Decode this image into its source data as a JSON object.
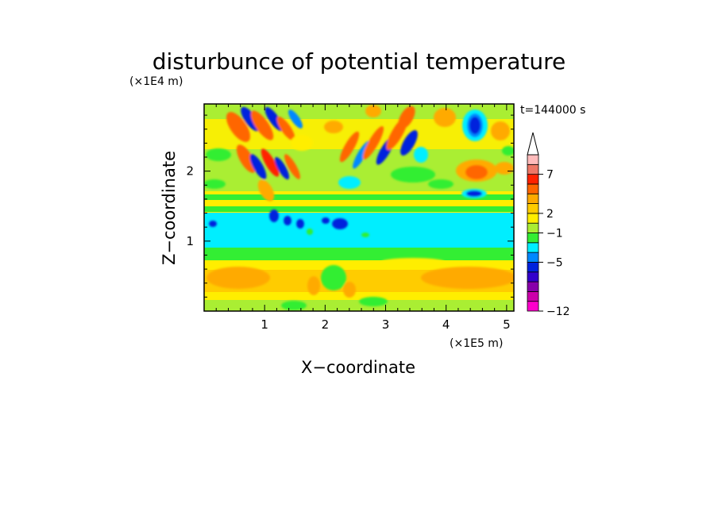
{
  "chart_data": {
    "type": "heatmap",
    "title": "disturbunce of potential temperature",
    "xlabel": "X−coordinate",
    "ylabel": "Z−coordinate",
    "x_unit": "(×1E5 m)",
    "y_unit": "(×1E4 m)",
    "time_label": "t=144000 s",
    "xlim": [
      0,
      5.12
    ],
    "ylim": [
      0,
      2.96
    ],
    "x_ticks": [
      "1",
      "2",
      "3",
      "4",
      "5"
    ],
    "y_ticks": [
      "1",
      "2"
    ],
    "x_tick_values": [
      1,
      2,
      3,
      4,
      5
    ],
    "y_tick_values": [
      1,
      2
    ],
    "colorbar": {
      "levels": [
        -12,
        -5,
        -1,
        2,
        7
      ],
      "labels": [
        "−12",
        "−5",
        "−1",
        "2",
        "7"
      ],
      "colors": [
        "#ff00cc",
        "#cc00aa",
        "#8800aa",
        "#3300cc",
        "#0022dd",
        "#0088ff",
        "#00eeff",
        "#33ee33",
        "#aaee33",
        "#ffee00",
        "#ffcc00",
        "#ffaa00",
        "#ff6600",
        "#ff2200",
        "#ee7766",
        "#ffbbbb"
      ],
      "extend": "max"
    },
    "bands": [
      {
        "z": [
          0.0,
          0.08
        ],
        "level": "yellow"
      },
      {
        "z": [
          0.08,
          0.4
        ],
        "level": "yellow-orange"
      },
      {
        "z": [
          0.4,
          0.65
        ],
        "level": "yellow"
      },
      {
        "z": [
          0.65,
          0.85
        ],
        "level": "green"
      },
      {
        "z": [
          0.85,
          1.4
        ],
        "level": "cyan"
      },
      {
        "z": [
          1.4,
          1.6
        ],
        "level": "green"
      },
      {
        "z": [
          1.6,
          2.96
        ],
        "level": "yellow-green"
      }
    ],
    "features": [
      {
        "x": 0.75,
        "z": 2.75,
        "level": "blue",
        "note": "negative anomaly"
      },
      {
        "x": 1.1,
        "z": 2.55,
        "level": "blue"
      },
      {
        "x": 4.5,
        "z": 2.7,
        "level": "blue"
      },
      {
        "x": 4.5,
        "z": 2.05,
        "level": "orange"
      },
      {
        "x": 4.4,
        "z": 1.7,
        "level": "blue"
      },
      {
        "x": 3.2,
        "z": 2.7,
        "level": "orange"
      },
      {
        "x": 0.65,
        "z": 0.45,
        "level": "orange"
      },
      {
        "x": 4.6,
        "z": 0.45,
        "level": "orange"
      }
    ]
  }
}
